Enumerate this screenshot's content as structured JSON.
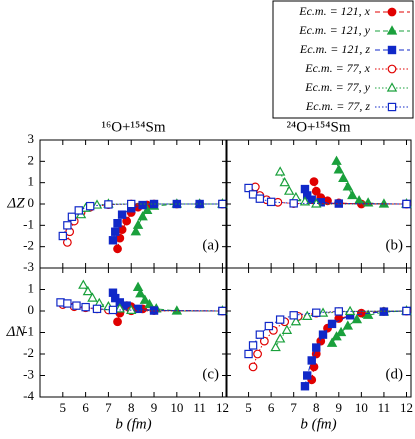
{
  "chart_data": [
    {
      "type": "scatter",
      "title": "¹⁶O+¹⁵⁴Sm",
      "ylabel": "ΔZ",
      "annotation": "(a)",
      "xlim": [
        4,
        12.2
      ],
      "ylim": [
        -3,
        3
      ],
      "xticks": [
        5,
        6,
        7,
        8,
        9,
        10,
        11,
        12
      ],
      "yticks": [
        -3,
        -2,
        -1,
        0,
        1,
        2,
        3
      ],
      "series": [
        {
          "name": "Ec.m. = 121, x",
          "color": "#e00000",
          "marker": "circle",
          "filled": true,
          "linestyle": "dashed",
          "x": [
            7.4,
            7.5,
            7.6,
            7.8,
            8.0,
            8.3,
            8.7,
            9,
            10,
            11,
            12
          ],
          "values": [
            -2.1,
            -1.6,
            -1.2,
            -0.8,
            -0.4,
            -0.15,
            -0.05,
            0,
            0,
            0,
            0
          ]
        },
        {
          "name": "Ec.m. = 121, y",
          "color": "#1aa03c",
          "marker": "triangle",
          "filled": true,
          "linestyle": "dashed",
          "x": [
            8.2,
            8.3,
            8.5,
            8.7,
            9,
            10,
            11,
            12
          ],
          "values": [
            -1.3,
            -1.0,
            -0.6,
            -0.3,
            -0.1,
            0,
            0,
            0
          ]
        },
        {
          "name": "Ec.m. = 121, z",
          "color": "#1028c8",
          "marker": "square",
          "filled": true,
          "linestyle": "dashed",
          "x": [
            7.2,
            7.3,
            7.4,
            7.6,
            8,
            8.5,
            9,
            10,
            11,
            12
          ],
          "values": [
            -1.7,
            -1.3,
            -0.9,
            -0.5,
            -0.2,
            -0.05,
            0,
            0,
            0,
            0
          ]
        },
        {
          "name": "Ec.m. = 77, x",
          "color": "#e00000",
          "marker": "circle",
          "filled": false,
          "linestyle": "dotted",
          "x": [
            5.2,
            5.3,
            5.5,
            5.8,
            6.2,
            7,
            8,
            12
          ],
          "values": [
            -1.8,
            -1.3,
            -0.8,
            -0.4,
            -0.15,
            -0.03,
            0,
            0
          ]
        },
        {
          "name": "Ec.m. = 77, y",
          "color": "#1aa03c",
          "marker": "triangle",
          "filled": false,
          "linestyle": "dotted",
          "x": [
            5.8,
            6,
            6.5,
            7,
            12
          ],
          "values": [
            -0.5,
            -0.2,
            -0.05,
            0,
            0
          ]
        },
        {
          "name": "Ec.m. = 77, z",
          "color": "#1028c8",
          "marker": "square",
          "filled": false,
          "linestyle": "dotted",
          "x": [
            5.0,
            5.2,
            5.4,
            5.7,
            6.2,
            7,
            8,
            12
          ],
          "values": [
            -1.5,
            -1.0,
            -0.6,
            -0.3,
            -0.1,
            -0.02,
            0,
            0
          ]
        }
      ]
    },
    {
      "type": "scatter",
      "title": "²⁴O+¹⁵⁴Sm",
      "annotation": "(b)",
      "xlim": [
        4,
        12.2
      ],
      "ylim": [
        -3,
        3
      ],
      "xticks": [
        5,
        6,
        7,
        8,
        9,
        10,
        11,
        12
      ],
      "yticks": [
        -3,
        -2,
        -1,
        0,
        1,
        2,
        3
      ],
      "series": [
        {
          "color": "#e00000",
          "marker": "circle",
          "filled": true,
          "linestyle": "dashed",
          "x": [
            7.9,
            8,
            8.2,
            8.5,
            9,
            10,
            12
          ],
          "values": [
            1.05,
            0.6,
            0.3,
            0.15,
            0.05,
            0,
            0
          ]
        },
        {
          "color": "#1aa03c",
          "marker": "triangle",
          "filled": true,
          "linestyle": "dashed",
          "x": [
            8.9,
            9.0,
            9.2,
            9.4,
            9.6,
            9.9,
            10.3,
            11,
            12
          ],
          "values": [
            2.0,
            1.6,
            1.2,
            0.8,
            0.4,
            0.15,
            0.05,
            0,
            0
          ]
        },
        {
          "color": "#1028c8",
          "marker": "square",
          "filled": true,
          "linestyle": "dashed",
          "x": [
            7.5,
            7.6,
            7.8,
            8.2,
            9,
            12
          ],
          "values": [
            0.7,
            0.4,
            0.2,
            0.08,
            0.02,
            0
          ]
        },
        {
          "color": "#e00000",
          "marker": "circle",
          "filled": false,
          "linestyle": "dotted",
          "x": [
            5.3,
            5.5,
            5.8,
            6.3,
            7,
            12
          ],
          "values": [
            0.8,
            0.4,
            0.2,
            0.08,
            0.02,
            0
          ]
        },
        {
          "color": "#1aa03c",
          "marker": "triangle",
          "filled": false,
          "linestyle": "dotted",
          "x": [
            6.4,
            6.6,
            6.8,
            7.1,
            7.5,
            8,
            12
          ],
          "values": [
            1.5,
            1.0,
            0.6,
            0.3,
            0.1,
            0,
            0
          ]
        },
        {
          "color": "#1028c8",
          "marker": "square",
          "filled": false,
          "linestyle": "dotted",
          "x": [
            5.0,
            5.2,
            5.5,
            6,
            7,
            12
          ],
          "values": [
            0.75,
            0.45,
            0.25,
            0.1,
            0.03,
            0
          ]
        }
      ]
    },
    {
      "type": "scatter",
      "ylabel": "ΔN",
      "xlabel": "b (fm)",
      "annotation": "(c)",
      "xlim": [
        4,
        12.2
      ],
      "ylim": [
        -4,
        2
      ],
      "xticks": [
        5,
        6,
        7,
        8,
        9,
        10,
        11,
        12
      ],
      "yticks": [
        -4,
        -3,
        -2,
        -1,
        0,
        1
      ],
      "series": [
        {
          "color": "#e00000",
          "marker": "circle",
          "filled": true,
          "linestyle": "dashed",
          "x": [
            7.4,
            7.5,
            7.6,
            7.8,
            8,
            8.5,
            9,
            12
          ],
          "values": [
            -0.5,
            -0.1,
            0.2,
            0.25,
            0.2,
            0.1,
            0.02,
            0
          ]
        },
        {
          "color": "#1aa03c",
          "marker": "triangle",
          "filled": true,
          "linestyle": "dashed",
          "x": [
            8.3,
            8.4,
            8.6,
            8.8,
            9.1,
            10,
            12
          ],
          "values": [
            1.1,
            0.8,
            0.5,
            0.3,
            0.1,
            0,
            0
          ]
        },
        {
          "color": "#1028c8",
          "marker": "square",
          "filled": true,
          "linestyle": "dashed",
          "x": [
            7.2,
            7.3,
            7.5,
            7.8,
            8.3,
            9,
            12
          ],
          "values": [
            0.85,
            0.6,
            0.4,
            0.25,
            0.1,
            0.02,
            0
          ]
        },
        {
          "color": "#e00000",
          "marker": "circle",
          "filled": false,
          "linestyle": "dotted",
          "x": [
            5.0,
            5.5,
            6,
            6.5,
            7,
            8,
            12
          ],
          "values": [
            0.3,
            0.2,
            0.15,
            0.1,
            0.05,
            0.01,
            0
          ]
        },
        {
          "color": "#1aa03c",
          "marker": "triangle",
          "filled": false,
          "linestyle": "dotted",
          "x": [
            5.9,
            6.1,
            6.3,
            6.6,
            7,
            7.5,
            8,
            12
          ],
          "values": [
            1.2,
            0.9,
            0.6,
            0.35,
            0.2,
            0.1,
            0.03,
            0
          ]
        },
        {
          "color": "#1028c8",
          "marker": "square",
          "filled": false,
          "linestyle": "dotted",
          "x": [
            4.9,
            5.2,
            5.6,
            6,
            6.5,
            7.2,
            12
          ],
          "values": [
            0.4,
            0.35,
            0.25,
            0.18,
            0.1,
            0.05,
            0
          ]
        }
      ]
    },
    {
      "type": "scatter",
      "xlabel": "b (fm)",
      "annotation": "(d)",
      "xlim": [
        4,
        12.2
      ],
      "ylim": [
        -4,
        2
      ],
      "xticks": [
        5,
        6,
        7,
        8,
        9,
        10,
        11,
        12
      ],
      "yticks": [
        -4,
        -3,
        -2,
        -1,
        0,
        1
      ],
      "series": [
        {
          "color": "#e00000",
          "marker": "circle",
          "filled": true,
          "linestyle": "dashed",
          "x": [
            7.8,
            7.9,
            8,
            8.2,
            8.5,
            9,
            10,
            11,
            12
          ],
          "values": [
            -3.2,
            -2.6,
            -2.0,
            -1.4,
            -0.8,
            -0.35,
            -0.1,
            -0.02,
            0
          ]
        },
        {
          "color": "#1aa03c",
          "marker": "triangle",
          "filled": true,
          "linestyle": "dashed",
          "x": [
            8.7,
            8.9,
            9.1,
            9.4,
            9.8,
            10.3,
            11,
            12
          ],
          "values": [
            -1.5,
            -1.2,
            -1.0,
            -0.7,
            -0.4,
            -0.2,
            -0.05,
            0
          ]
        },
        {
          "color": "#1028c8",
          "marker": "square",
          "filled": true,
          "linestyle": "dashed",
          "x": [
            7.5,
            7.6,
            7.8,
            8,
            8.3,
            8.7,
            9.5,
            11,
            12
          ],
          "values": [
            -3.5,
            -3.0,
            -2.3,
            -1.7,
            -1.1,
            -0.6,
            -0.2,
            -0.03,
            0
          ]
        },
        {
          "color": "#e00000",
          "marker": "circle",
          "filled": false,
          "linestyle": "dotted",
          "x": [
            5.2,
            5.4,
            5.7,
            6.1,
            6.6,
            7.2,
            8,
            9,
            12
          ],
          "values": [
            -2.6,
            -2.0,
            -1.4,
            -0.9,
            -0.5,
            -0.25,
            -0.1,
            -0.03,
            0
          ]
        },
        {
          "color": "#1aa03c",
          "marker": "triangle",
          "filled": false,
          "linestyle": "dotted",
          "x": [
            6.2,
            6.4,
            6.7,
            7.1,
            7.6,
            8.3,
            9.5,
            12
          ],
          "values": [
            -1.7,
            -1.3,
            -0.9,
            -0.5,
            -0.25,
            -0.1,
            -0.02,
            0
          ]
        },
        {
          "color": "#1028c8",
          "marker": "square",
          "filled": false,
          "linestyle": "dotted",
          "x": [
            5.0,
            5.2,
            5.5,
            5.9,
            6.4,
            7,
            8,
            9,
            12
          ],
          "values": [
            -2.0,
            -1.6,
            -1.1,
            -0.7,
            -0.4,
            -0.2,
            -0.08,
            -0.02,
            0
          ]
        }
      ]
    }
  ]
}
